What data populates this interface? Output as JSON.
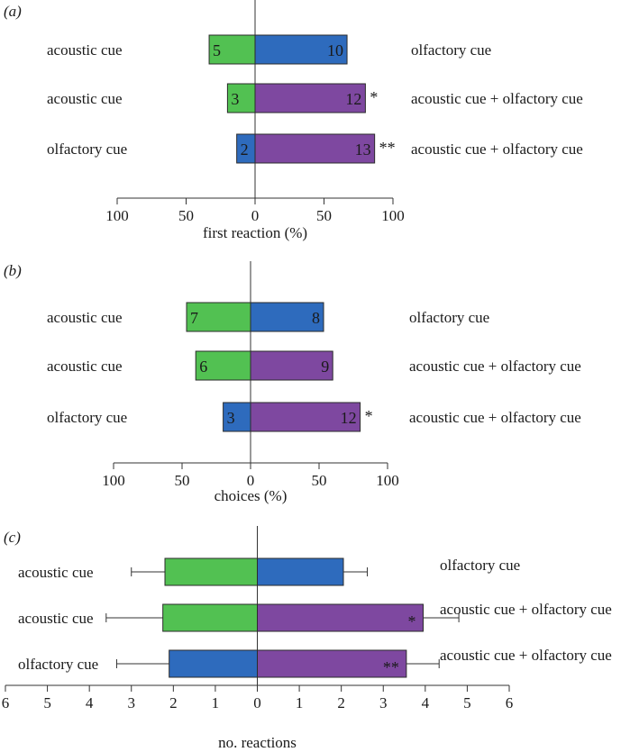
{
  "colors": {
    "acoustic": "#52c152",
    "olfactory": "#2e6bbd",
    "combined": "#7e48a0",
    "axis": "#333333",
    "bar_edge": "#2b2b2b"
  },
  "chart_data": [
    {
      "panel": "(a)",
      "type": "bar",
      "orientation": "horizontal-diverging",
      "xlabel": "first reaction (%)",
      "xlim": [
        -100,
        100
      ],
      "ticks": [
        -100,
        -50,
        0,
        50,
        100
      ],
      "tick_labels": [
        "100",
        "50",
        "0",
        "50",
        "100"
      ],
      "rows": [
        {
          "left_label": "acoustic cue",
          "right_label": "olfactory cue",
          "left_value": 33.3,
          "left_count": "5",
          "left_cue": "acoustic",
          "right_value": 66.7,
          "right_count": "10",
          "right_cue": "olfactory",
          "sig": ""
        },
        {
          "left_label": "acoustic cue",
          "right_label": "acoustic cue + olfactory cue",
          "left_value": 20,
          "left_count": "3",
          "left_cue": "acoustic",
          "right_value": 80,
          "right_count": "12",
          "right_cue": "combined",
          "sig": "*"
        },
        {
          "left_label": "olfactory cue",
          "right_label": "acoustic cue + olfactory cue",
          "left_value": 13.3,
          "left_count": "2",
          "left_cue": "olfactory",
          "right_value": 86.7,
          "right_count": "13",
          "right_cue": "combined",
          "sig": "**"
        }
      ]
    },
    {
      "panel": "(b)",
      "type": "bar",
      "orientation": "horizontal-diverging",
      "xlabel": "choices (%)",
      "xlim": [
        -100,
        100
      ],
      "ticks": [
        -100,
        -50,
        0,
        50,
        100
      ],
      "tick_labels": [
        "100",
        "50",
        "0",
        "50",
        "100"
      ],
      "rows": [
        {
          "left_label": "acoustic cue",
          "right_label": "olfactory cue",
          "left_value": 46.7,
          "left_count": "7",
          "left_cue": "acoustic",
          "right_value": 53.3,
          "right_count": "8",
          "right_cue": "olfactory",
          "sig": ""
        },
        {
          "left_label": "acoustic cue",
          "right_label": "acoustic cue + olfactory cue",
          "left_value": 40,
          "left_count": "6",
          "left_cue": "acoustic",
          "right_value": 60,
          "right_count": "9",
          "right_cue": "combined",
          "sig": ""
        },
        {
          "left_label": "olfactory cue",
          "right_label": "acoustic cue + olfactory cue",
          "left_value": 20,
          "left_count": "3",
          "left_cue": "olfactory",
          "right_value": 80,
          "right_count": "12",
          "right_cue": "combined",
          "sig": "*"
        }
      ]
    },
    {
      "panel": "(c)",
      "type": "bar",
      "orientation": "horizontal-diverging",
      "xlabel": "no. reactions",
      "xlim": [
        -6,
        6
      ],
      "ticks": [
        -6,
        -5,
        -4,
        -3,
        -2,
        -1,
        0,
        1,
        2,
        3,
        4,
        5,
        6
      ],
      "tick_labels": [
        "6",
        "5",
        "4",
        "3",
        "2",
        "1",
        "0",
        "1",
        "2",
        "3",
        "4",
        "5",
        "6"
      ],
      "rows": [
        {
          "left_label": "acoustic cue",
          "right_label": "olfactory cue",
          "left_value": 2.2,
          "left_err": 0.8,
          "left_cue": "acoustic",
          "right_value": 2.05,
          "right_err": 0.57,
          "right_cue": "olfactory",
          "sig": ""
        },
        {
          "left_label": "acoustic cue",
          "right_label": "acoustic cue + olfactory cue",
          "left_value": 2.25,
          "left_err": 1.35,
          "left_cue": "acoustic",
          "right_value": 3.95,
          "right_err": 0.85,
          "right_cue": "combined",
          "sig": "*"
        },
        {
          "left_label": "olfactory cue",
          "right_label": "acoustic cue + olfactory cue",
          "left_value": 2.1,
          "left_err": 1.25,
          "left_cue": "olfactory",
          "right_value": 3.55,
          "right_err": 0.78,
          "right_cue": "combined",
          "sig": "**"
        }
      ]
    }
  ]
}
